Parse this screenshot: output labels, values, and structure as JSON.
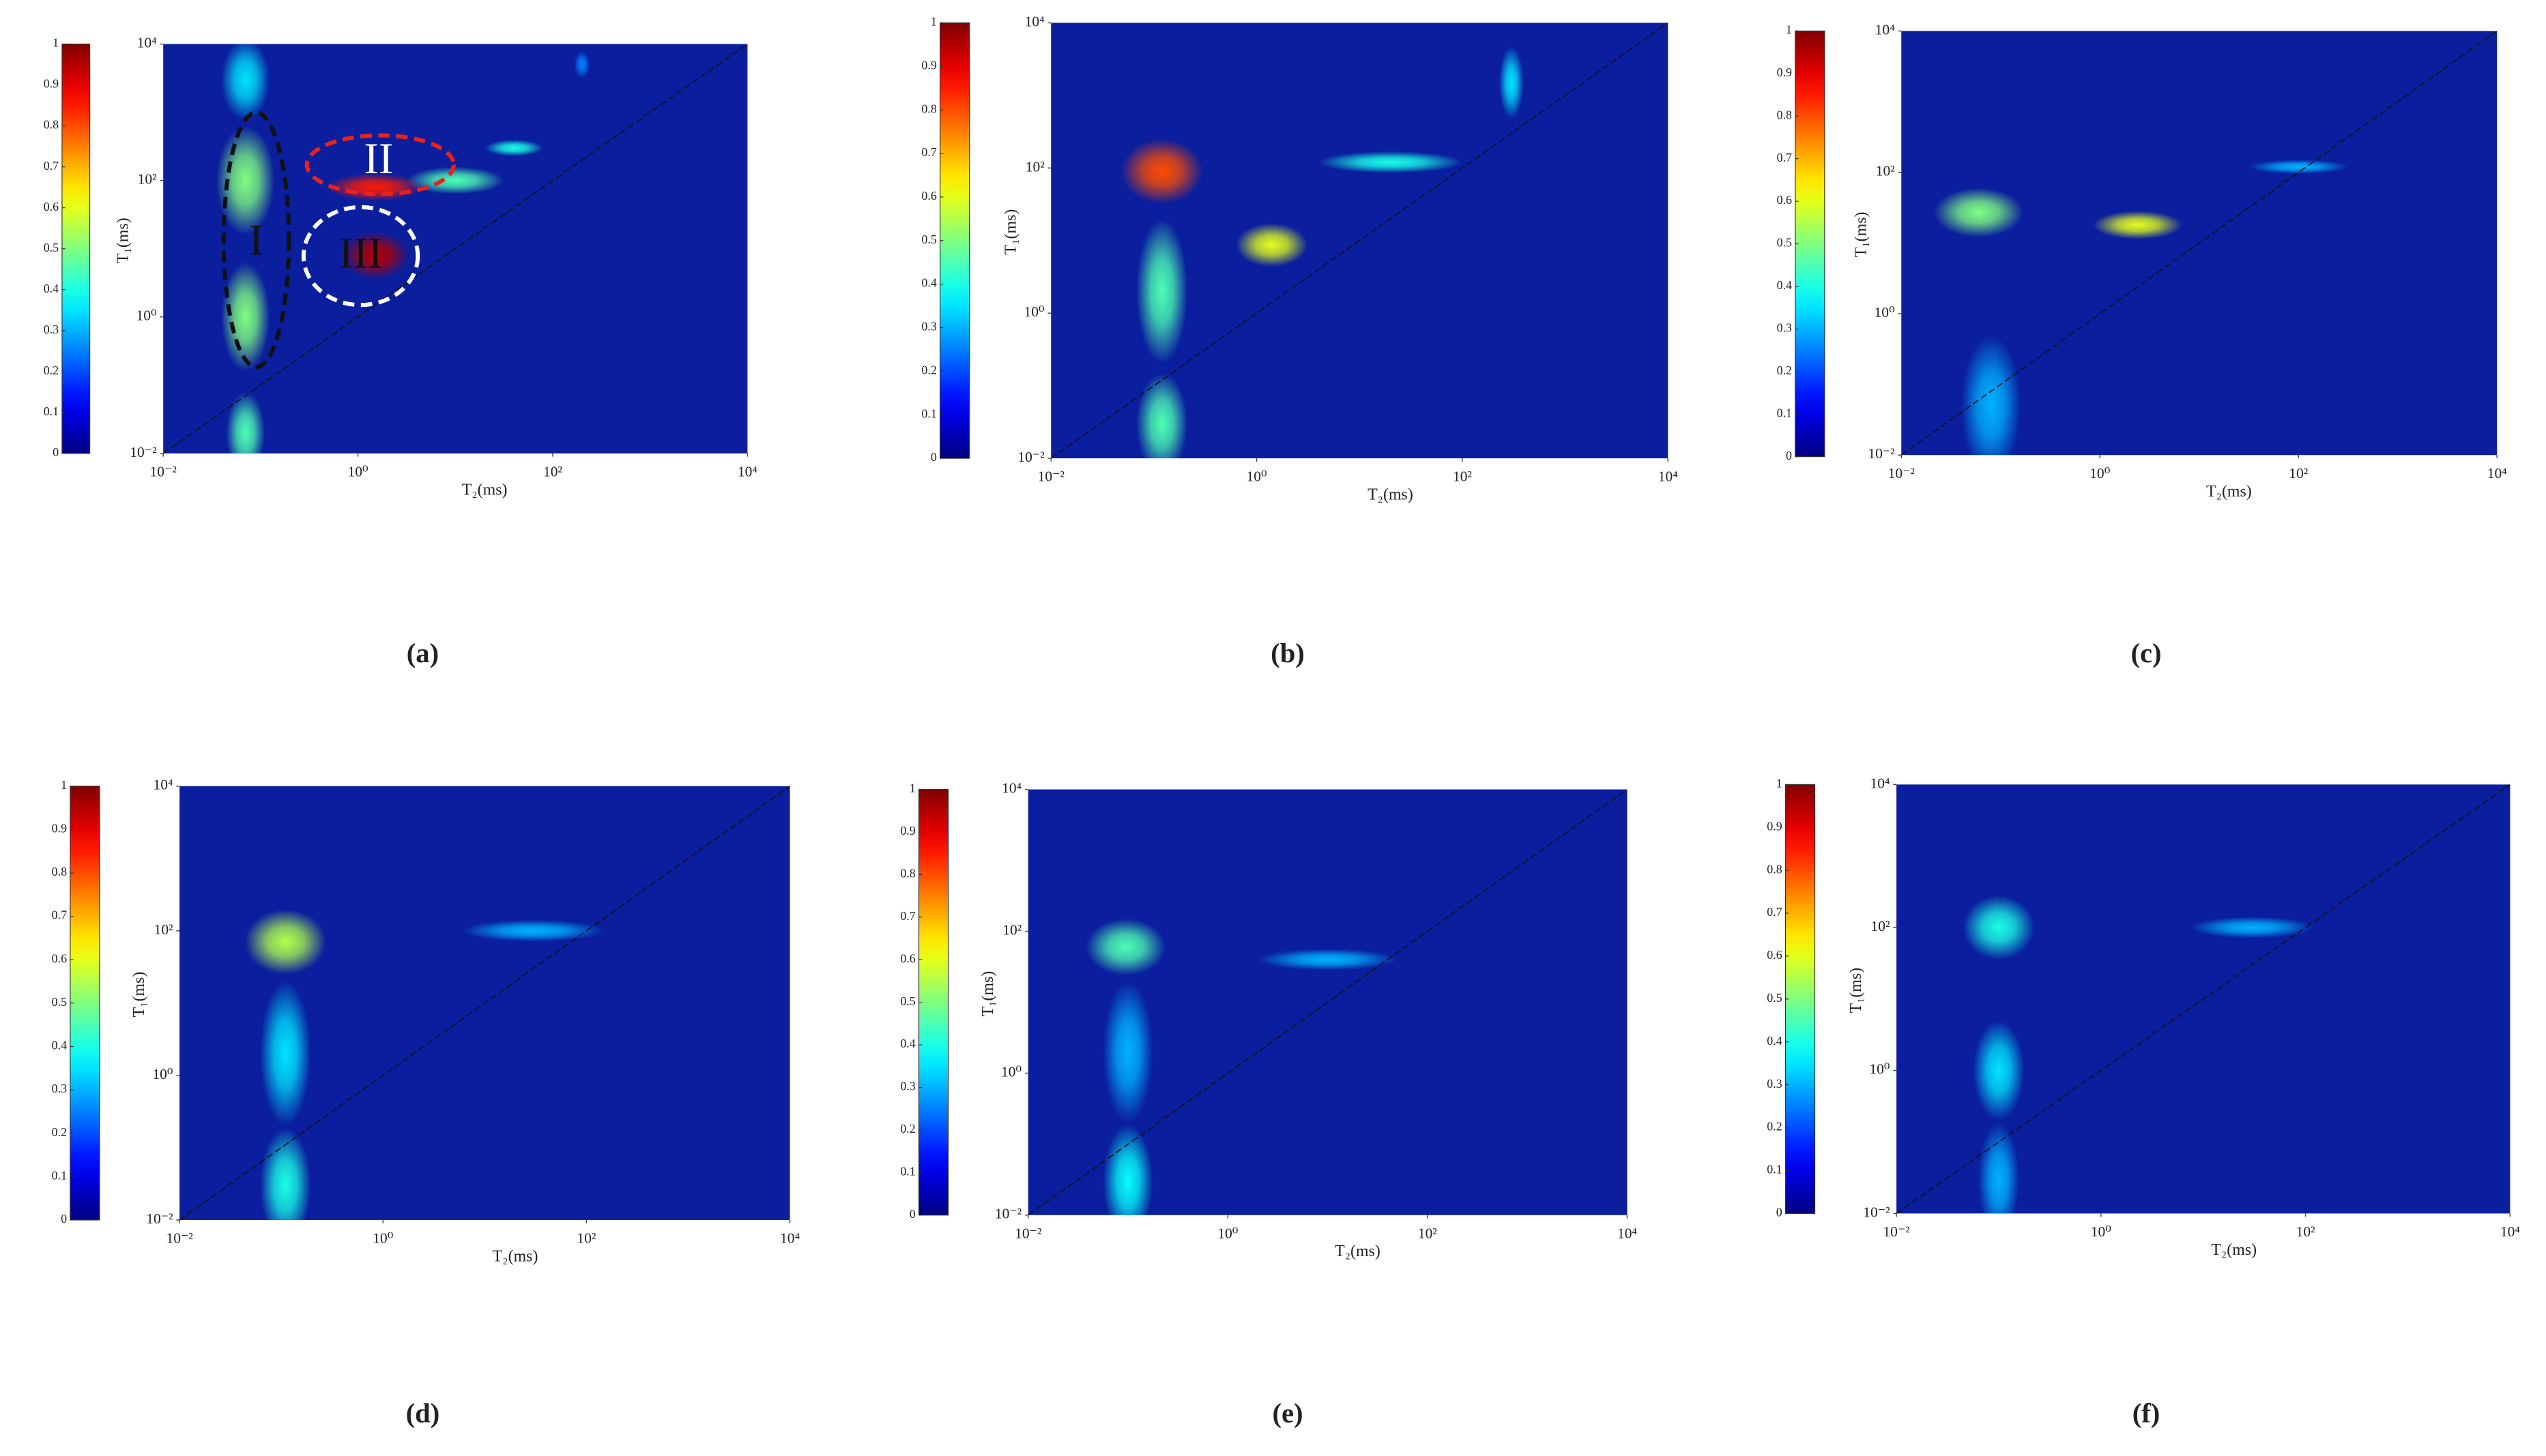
{
  "chart_data": [
    {
      "type": "heatmap",
      "label": "(a)",
      "x_label": "T₂(ms)",
      "y_label": "T₁(ms)",
      "xscale": "log",
      "yscale": "log",
      "xlim": [
        0.01,
        10000
      ],
      "ylim": [
        0.01,
        10000
      ],
      "xticks": [
        {
          "value": 0.01,
          "label": "10⁻²"
        },
        {
          "value": 1,
          "label": "10⁰"
        },
        {
          "value": 100,
          "label": "10²"
        },
        {
          "value": 10000,
          "label": "10⁴"
        }
      ],
      "yticks": [
        {
          "value": 0.01,
          "label": "10⁻²"
        },
        {
          "value": 1,
          "label": "10⁰"
        },
        {
          "value": 100,
          "label": "10²"
        },
        {
          "value": 10000,
          "label": "10⁴"
        }
      ],
      "colormap": "jet",
      "clim": [
        0,
        1
      ],
      "colorbar_ticks": [
        0,
        0.1,
        0.2,
        0.3,
        0.4,
        0.5,
        0.6,
        0.7,
        0.8,
        0.9,
        1
      ],
      "background": "#0a1e9e",
      "annotations": [
        "I",
        "II",
        "III"
      ],
      "peaks": [
        {
          "t2": 200,
          "t1": 5000,
          "amplitude": 0.25,
          "spread": [
            0.08,
            0.2
          ]
        },
        {
          "t2": 0.07,
          "t1": 3000,
          "amplitude": 0.35,
          "spread": [
            0.25,
            0.6
          ]
        },
        {
          "t2": 0.07,
          "t1": 0.02,
          "amplitude": 0.45,
          "spread": [
            0.2,
            0.6
          ]
        },
        {
          "t2": 0.07,
          "t1": 1,
          "amplitude": 0.5,
          "spread": [
            0.25,
            0.8
          ]
        },
        {
          "t2": 0.07,
          "t1": 100,
          "amplitude": 0.5,
          "spread": [
            0.3,
            0.8
          ]
        },
        {
          "t2": 40,
          "t1": 300,
          "amplitude": 0.4,
          "spread": [
            0.3,
            0.12
          ]
        },
        {
          "t2": 10,
          "t1": 100,
          "amplitude": 0.45,
          "spread": [
            0.5,
            0.2
          ]
        },
        {
          "t2": 1.5,
          "t1": 80,
          "amplitude": 0.85,
          "spread": [
            0.5,
            0.2
          ]
        },
        {
          "t2": 1.5,
          "t1": 8,
          "amplitude": 0.95,
          "spread": [
            0.35,
            0.35
          ]
        }
      ]
    },
    {
      "type": "heatmap",
      "label": "(b)",
      "x_label": "T₂(ms)",
      "y_label": "T₁(ms)",
      "xscale": "log",
      "yscale": "log",
      "xlim": [
        0.01,
        10000
      ],
      "ylim": [
        0.01,
        10000
      ],
      "xticks": [
        {
          "value": 0.01,
          "label": "10⁻²"
        },
        {
          "value": 1,
          "label": "10⁰"
        },
        {
          "value": 100,
          "label": "10²"
        },
        {
          "value": 10000,
          "label": "10⁴"
        }
      ],
      "yticks": [
        {
          "value": 0.01,
          "label": "10⁻²"
        },
        {
          "value": 1,
          "label": "10⁰"
        },
        {
          "value": 100,
          "label": "10²"
        },
        {
          "value": 10000,
          "label": "10⁴"
        }
      ],
      "colormap": "jet",
      "clim": [
        0,
        1
      ],
      "colorbar_ticks": [
        0,
        0.1,
        0.2,
        0.3,
        0.4,
        0.5,
        0.6,
        0.7,
        0.8,
        0.9,
        1
      ],
      "background": "#0a1e9e",
      "peaks": [
        {
          "t2": 0.12,
          "t1": 0.03,
          "amplitude": 0.45,
          "spread": [
            0.25,
            0.7
          ]
        },
        {
          "t2": 0.12,
          "t1": 2,
          "amplitude": 0.45,
          "spread": [
            0.25,
            1.0
          ]
        },
        {
          "t2": 300,
          "t1": 1500,
          "amplitude": 0.35,
          "spread": [
            0.12,
            0.5
          ]
        },
        {
          "t2": 20,
          "t1": 120,
          "amplitude": 0.4,
          "spread": [
            0.7,
            0.15
          ]
        },
        {
          "t2": 1.4,
          "t1": 8.7,
          "amplitude": 0.6,
          "spread": [
            0.35,
            0.3
          ]
        },
        {
          "t2": 0.12,
          "t1": 90,
          "amplitude": 0.8,
          "spread": [
            0.4,
            0.45
          ]
        }
      ]
    },
    {
      "type": "heatmap",
      "label": "(c)",
      "x_label": "T₂(ms)",
      "y_label": "T₁(ms)",
      "xscale": "log",
      "yscale": "log",
      "xlim": [
        0.01,
        10000
      ],
      "ylim": [
        0.01,
        10000
      ],
      "xticks": [
        {
          "value": 0.01,
          "label": "10⁻²"
        },
        {
          "value": 1,
          "label": "10⁰"
        },
        {
          "value": 100,
          "label": "10²"
        },
        {
          "value": 10000,
          "label": "10⁴"
        }
      ],
      "yticks": [
        {
          "value": 0.01,
          "label": "10⁻²"
        },
        {
          "value": 1,
          "label": "10⁰"
        },
        {
          "value": 100,
          "label": "10²"
        },
        {
          "value": 10000,
          "label": "10⁴"
        }
      ],
      "colormap": "jet",
      "clim": [
        0,
        1
      ],
      "colorbar_ticks": [
        0,
        0.1,
        0.2,
        0.3,
        0.4,
        0.5,
        0.6,
        0.7,
        0.8,
        0.9,
        1
      ],
      "background": "#0a1e9e",
      "peaks": [
        {
          "t2": 0.08,
          "t1": 0.05,
          "amplitude": 0.3,
          "spread": [
            0.3,
            1.0
          ]
        },
        {
          "t2": 100,
          "t1": 120,
          "amplitude": 0.3,
          "spread": [
            0.5,
            0.1
          ]
        },
        {
          "t2": 0.06,
          "t1": 27,
          "amplitude": 0.5,
          "spread": [
            0.45,
            0.35
          ]
        },
        {
          "t2": 2.4,
          "t1": 18,
          "amplitude": 0.6,
          "spread": [
            0.45,
            0.2
          ]
        }
      ]
    },
    {
      "type": "heatmap",
      "label": "(d)",
      "x_label": "T₂(ms)",
      "y_label": "T₁(ms)",
      "xscale": "log",
      "yscale": "log",
      "xlim": [
        0.01,
        10000
      ],
      "ylim": [
        0.01,
        10000
      ],
      "xticks": [
        {
          "value": 0.01,
          "label": "10⁻²"
        },
        {
          "value": 1,
          "label": "10⁰"
        },
        {
          "value": 100,
          "label": "10²"
        },
        {
          "value": 10000,
          "label": "10⁴"
        }
      ],
      "yticks": [
        {
          "value": 0.01,
          "label": "10⁻²"
        },
        {
          "value": 1,
          "label": "10⁰"
        },
        {
          "value": 100,
          "label": "10²"
        },
        {
          "value": 10000,
          "label": "10⁴"
        }
      ],
      "colormap": "jet",
      "clim": [
        0,
        1
      ],
      "colorbar_ticks": [
        0,
        0.1,
        0.2,
        0.3,
        0.4,
        0.5,
        0.6,
        0.7,
        0.8,
        0.9,
        1
      ],
      "background": "#0a1e9e",
      "peaks": [
        {
          "t2": 0.11,
          "t1": 0.03,
          "amplitude": 0.4,
          "spread": [
            0.25,
            0.8
          ]
        },
        {
          "t2": 0.11,
          "t1": 2,
          "amplitude": 0.35,
          "spread": [
            0.25,
            1.0
          ]
        },
        {
          "t2": 30,
          "t1": 100,
          "amplitude": 0.3,
          "spread": [
            0.7,
            0.15
          ]
        },
        {
          "t2": 0.11,
          "t1": 70,
          "amplitude": 0.55,
          "spread": [
            0.4,
            0.45
          ]
        }
      ]
    },
    {
      "type": "heatmap",
      "label": "(e)",
      "x_label": "T₂(ms)",
      "y_label": "T₁(ms)",
      "xscale": "log",
      "yscale": "log",
      "xlim": [
        0.01,
        10000
      ],
      "ylim": [
        0.01,
        10000
      ],
      "xticks": [
        {
          "value": 0.01,
          "label": "10⁻²"
        },
        {
          "value": 1,
          "label": "10⁰"
        },
        {
          "value": 100,
          "label": "10²"
        },
        {
          "value": 10000,
          "label": "10⁴"
        }
      ],
      "yticks": [
        {
          "value": 0.01,
          "label": "10⁻²"
        },
        {
          "value": 1,
          "label": "10⁰"
        },
        {
          "value": 100,
          "label": "10²"
        },
        {
          "value": 10000,
          "label": "10⁴"
        }
      ],
      "colormap": "jet",
      "clim": [
        0,
        1
      ],
      "colorbar_ticks": [
        0,
        0.1,
        0.2,
        0.3,
        0.4,
        0.5,
        0.6,
        0.7,
        0.8,
        0.9,
        1
      ],
      "background": "#0a1e9e",
      "peaks": [
        {
          "t2": 0.1,
          "t1": 0.03,
          "amplitude": 0.38,
          "spread": [
            0.25,
            0.8
          ]
        },
        {
          "t2": 0.1,
          "t1": 2,
          "amplitude": 0.3,
          "spread": [
            0.25,
            1.0
          ]
        },
        {
          "t2": 10,
          "t1": 40,
          "amplitude": 0.3,
          "spread": [
            0.7,
            0.15
          ]
        },
        {
          "t2": 0.095,
          "t1": 60,
          "amplitude": 0.45,
          "spread": [
            0.4,
            0.4
          ]
        }
      ]
    },
    {
      "type": "heatmap",
      "label": "(f)",
      "x_label": "T₂(ms)",
      "y_label": "T₁(ms)",
      "xscale": "log",
      "yscale": "log",
      "xlim": [
        0.01,
        10000
      ],
      "ylim": [
        0.01,
        10000
      ],
      "xticks": [
        {
          "value": 0.01,
          "label": "10⁻²"
        },
        {
          "value": 1,
          "label": "10⁰"
        },
        {
          "value": 100,
          "label": "10²"
        },
        {
          "value": 10000,
          "label": "10⁴"
        }
      ],
      "yticks": [
        {
          "value": 0.01,
          "label": "10⁻²"
        },
        {
          "value": 1,
          "label": "10⁰"
        },
        {
          "value": 100,
          "label": "10²"
        },
        {
          "value": 10000,
          "label": "10⁴"
        }
      ],
      "colormap": "jet",
      "clim": [
        0,
        1
      ],
      "colorbar_ticks": [
        0,
        0.1,
        0.2,
        0.3,
        0.4,
        0.5,
        0.6,
        0.7,
        0.8,
        0.9,
        1
      ],
      "background": "#0a1e9e",
      "peaks": [
        {
          "t2": 0.1,
          "t1": 0.03,
          "amplitude": 0.3,
          "spread": [
            0.2,
            0.8
          ]
        },
        {
          "t2": 30,
          "t1": 100,
          "amplitude": 0.3,
          "spread": [
            0.6,
            0.15
          ]
        },
        {
          "t2": 0.1,
          "t1": 1,
          "amplitude": 0.35,
          "spread": [
            0.25,
            0.7
          ]
        },
        {
          "t2": 0.1,
          "t1": 100,
          "amplitude": 0.4,
          "spread": [
            0.35,
            0.45
          ]
        }
      ]
    }
  ]
}
